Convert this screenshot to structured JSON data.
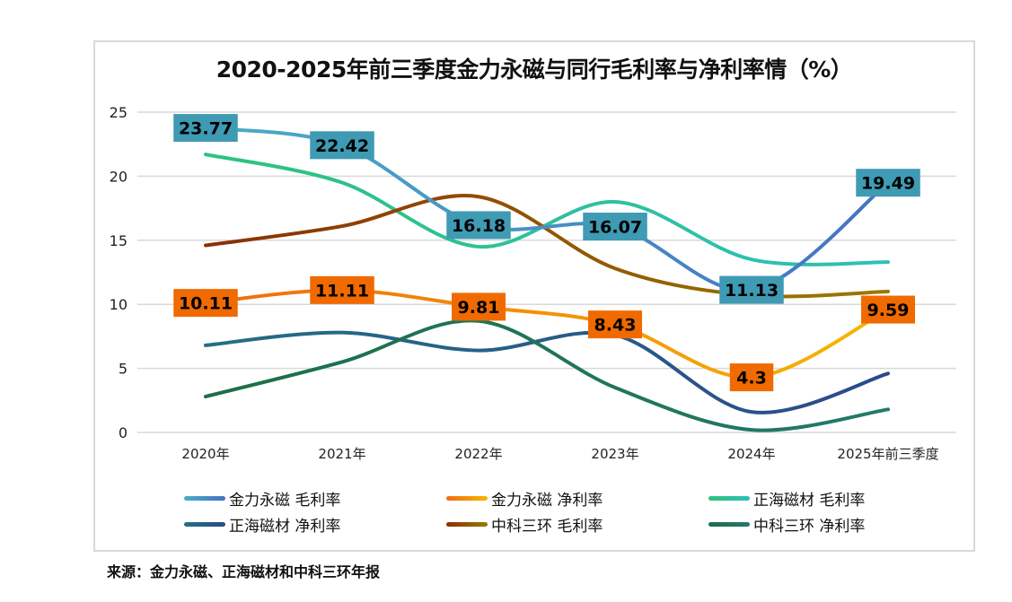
{
  "chart_data": {
    "type": "line",
    "title": "2020-2025年前三季度金力永磁与同行毛利率与净利率情（%）",
    "xlabel": "",
    "ylabel": "",
    "ylim": [
      0,
      25
    ],
    "yticks": [
      "0",
      "5",
      "10",
      "15",
      "20",
      "25"
    ],
    "ytick_values": [
      0,
      5,
      10,
      15,
      20,
      25
    ],
    "grid": true,
    "smooth": true,
    "legend_position": "bottom",
    "categories": [
      "2020年",
      "2021年",
      "2022年",
      "2023年",
      "2024年",
      "2025年前三季度"
    ],
    "series": [
      {
        "name": "金力永磁 毛利率",
        "values": [
          23.77,
          22.42,
          16.18,
          16.07,
          11.13,
          19.49
        ],
        "color_start": "#4bacc6",
        "color_end": "#4472c4",
        "labeled": true,
        "label_bg": "#3f9ab4"
      },
      {
        "name": "金力永磁 净利率",
        "values": [
          10.11,
          11.11,
          9.81,
          8.43,
          4.3,
          9.59
        ],
        "color_start": "#f26b0f",
        "color_end": "#f5b800",
        "labeled": true,
        "label_bg": "#f06a00"
      },
      {
        "name": "正海磁材 毛利率",
        "values": [
          21.7,
          19.5,
          14.5,
          18.0,
          13.5,
          13.3
        ],
        "color_start": "#2ec27e",
        "color_end": "#2fbfb8",
        "labeled": false
      },
      {
        "name": "正海磁材 净利率",
        "values": [
          6.8,
          7.8,
          6.4,
          7.6,
          1.6,
          4.6
        ],
        "color_start": "#236f86",
        "color_end": "#2b4a8c",
        "labeled": false
      },
      {
        "name": "中科三环 毛利率",
        "values": [
          14.6,
          16.1,
          18.4,
          12.8,
          10.7,
          11.0
        ],
        "color_start": "#8b2f00",
        "color_end": "#9a7a00",
        "labeled": false
      },
      {
        "name": "中科三环 净利率",
        "values": [
          2.8,
          5.5,
          8.7,
          3.5,
          0.2,
          1.8
        ],
        "color_start": "#1e6e48",
        "color_end": "#227a6a",
        "labeled": false
      }
    ]
  },
  "source_note": "来源：金力永磁、正海磁材和中科三环年报"
}
